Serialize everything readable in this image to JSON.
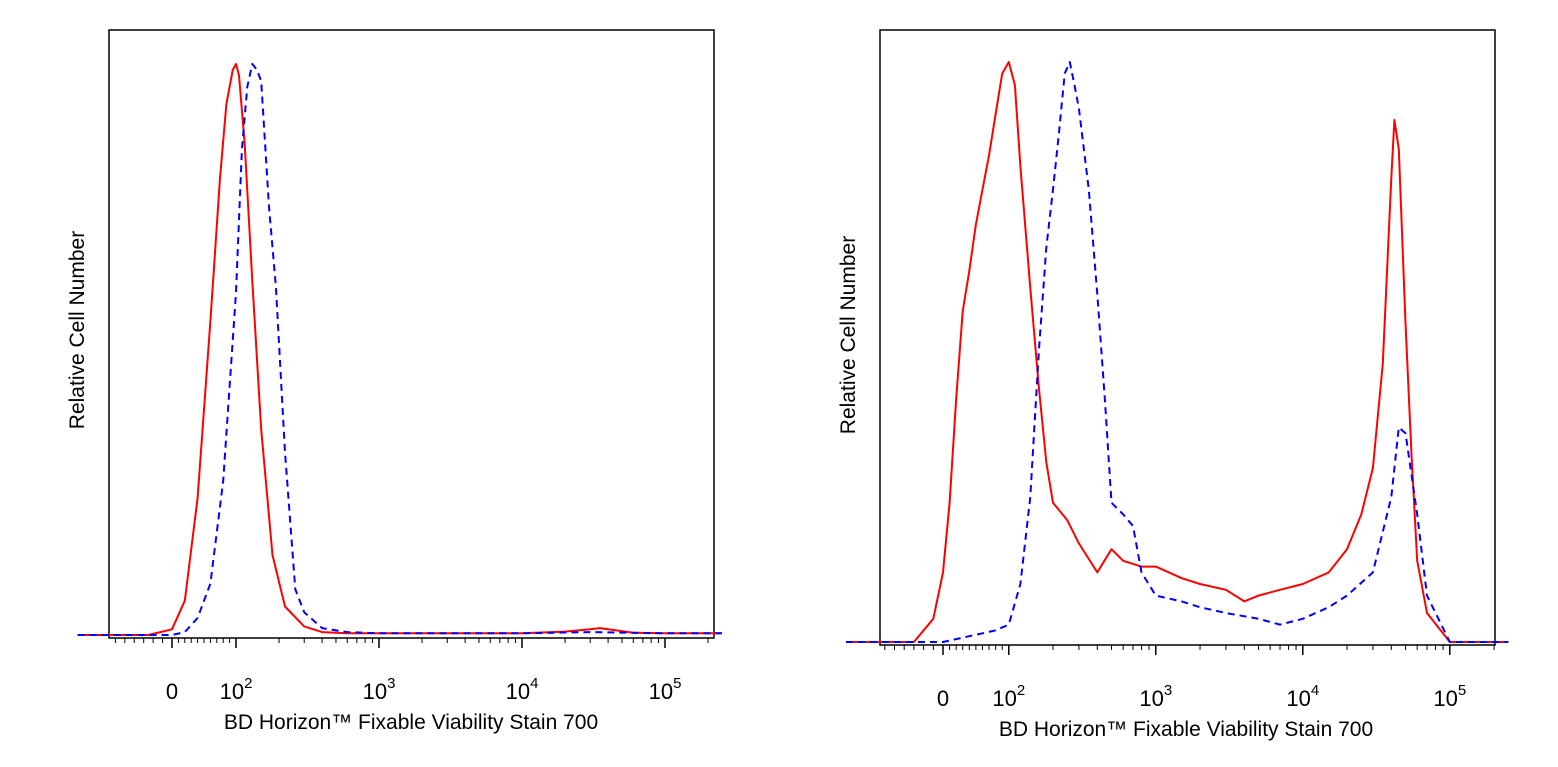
{
  "colors": {
    "solid_series": "#ff0000",
    "dashed_series": "#0000ff",
    "frame": "#000000"
  },
  "chart_data": [
    {
      "type": "line",
      "title": "",
      "xlabel": "BD Horizon™ Fixable Viability Stain 700",
      "ylabel": "Relative Cell Number",
      "x_scale": "biexponential",
      "xlim": [
        -200,
        250000
      ],
      "ylim": [
        0,
        1
      ],
      "y_ticks": "none",
      "x_ticks": [
        {
          "value": 0,
          "base": "0",
          "exp": ""
        },
        {
          "value": 100,
          "base": "10",
          "exp": "2"
        },
        {
          "value": 1000,
          "base": "10",
          "exp": "3"
        },
        {
          "value": 10000,
          "base": "10",
          "exp": "4"
        },
        {
          "value": 100000,
          "base": "10",
          "exp": "5"
        }
      ],
      "series": [
        {
          "name": "solid",
          "style": "solid",
          "color": "#ff0000",
          "x": [
            -200,
            -100,
            -50,
            0,
            20,
            40,
            60,
            75,
            85,
            95,
            100,
            105,
            115,
            130,
            150,
            180,
            220,
            300,
            400,
            600,
            1000,
            3000,
            10000,
            20000,
            30000,
            35000,
            40000,
            60000,
            100000,
            250000
          ],
          "y": [
            0,
            0,
            0,
            0.01,
            0.06,
            0.24,
            0.55,
            0.8,
            0.93,
            0.99,
            1.0,
            0.98,
            0.86,
            0.62,
            0.36,
            0.14,
            0.05,
            0.015,
            0.005,
            0.003,
            0.003,
            0.003,
            0.003,
            0.006,
            0.01,
            0.012,
            0.01,
            0.004,
            0.003,
            0.003
          ]
        },
        {
          "name": "dashed",
          "style": "dashed",
          "color": "#0000ff",
          "x": [
            -200,
            -100,
            0,
            20,
            40,
            60,
            80,
            100,
            110,
            120,
            130,
            140,
            150,
            170,
            190,
            220,
            260,
            300,
            400,
            600,
            1000,
            3000,
            10000,
            30000,
            100000,
            250000
          ],
          "y": [
            0,
            0,
            0,
            0.005,
            0.03,
            0.09,
            0.27,
            0.6,
            0.85,
            0.96,
            1.0,
            0.99,
            0.97,
            0.75,
            0.61,
            0.32,
            0.08,
            0.04,
            0.012,
            0.005,
            0.003,
            0.003,
            0.003,
            0.005,
            0.003,
            0.003
          ]
        }
      ]
    },
    {
      "type": "line",
      "title": "",
      "xlabel": "BD Horizon™ Fixable Viability Stain 700",
      "ylabel": "Relative Cell Number",
      "x_scale": "biexponential",
      "xlim": [
        -200,
        250000
      ],
      "ylim": [
        0,
        1
      ],
      "y_ticks": "none",
      "x_ticks": [
        {
          "value": 0,
          "base": "0",
          "exp": ""
        },
        {
          "value": 100,
          "base": "10",
          "exp": "2"
        },
        {
          "value": 1000,
          "base": "10",
          "exp": "3"
        },
        {
          "value": 10000,
          "base": "10",
          "exp": "4"
        },
        {
          "value": 100000,
          "base": "10",
          "exp": "5"
        }
      ],
      "series": [
        {
          "name": "solid",
          "style": "solid",
          "color": "#ff0000",
          "x": [
            -200,
            -120,
            -60,
            -20,
            0,
            10,
            20,
            30,
            40,
            50,
            60,
            70,
            80,
            90,
            100,
            110,
            120,
            140,
            160,
            180,
            200,
            250,
            300,
            400,
            500,
            600,
            800,
            1000,
            1500,
            2000,
            3000,
            4000,
            5000,
            7000,
            10000,
            15000,
            20000,
            25000,
            30000,
            35000,
            40000,
            42000,
            45000,
            50000,
            55000,
            60000,
            70000,
            100000,
            250000
          ],
          "y": [
            0,
            0,
            0,
            0.04,
            0.12,
            0.24,
            0.42,
            0.57,
            0.64,
            0.72,
            0.78,
            0.84,
            0.91,
            0.98,
            1.0,
            0.96,
            0.82,
            0.61,
            0.44,
            0.31,
            0.24,
            0.21,
            0.17,
            0.12,
            0.16,
            0.14,
            0.13,
            0.13,
            0.11,
            0.1,
            0.09,
            0.07,
            0.08,
            0.09,
            0.1,
            0.12,
            0.16,
            0.22,
            0.3,
            0.48,
            0.8,
            0.9,
            0.85,
            0.55,
            0.32,
            0.14,
            0.05,
            0.0,
            0.0
          ]
        },
        {
          "name": "dashed",
          "style": "dashed",
          "color": "#0000ff",
          "x": [
            -200,
            -100,
            -20,
            0,
            20,
            40,
            60,
            80,
            100,
            120,
            140,
            150,
            160,
            180,
            200,
            220,
            240,
            260,
            280,
            300,
            350,
            400,
            450,
            500,
            600,
            700,
            800,
            1000,
            1500,
            2000,
            3000,
            5000,
            7000,
            10000,
            15000,
            20000,
            30000,
            40000,
            45000,
            50000,
            60000,
            70000,
            100000,
            250000
          ],
          "y": [
            0,
            0,
            0,
            0.0,
            0.005,
            0.01,
            0.015,
            0.02,
            0.03,
            0.1,
            0.25,
            0.38,
            0.5,
            0.68,
            0.78,
            0.88,
            0.98,
            1.0,
            0.96,
            0.92,
            0.78,
            0.6,
            0.42,
            0.24,
            0.22,
            0.2,
            0.12,
            0.08,
            0.07,
            0.06,
            0.05,
            0.04,
            0.03,
            0.04,
            0.06,
            0.08,
            0.12,
            0.25,
            0.37,
            0.36,
            0.22,
            0.08,
            0.0,
            0.0
          ]
        }
      ]
    }
  ]
}
